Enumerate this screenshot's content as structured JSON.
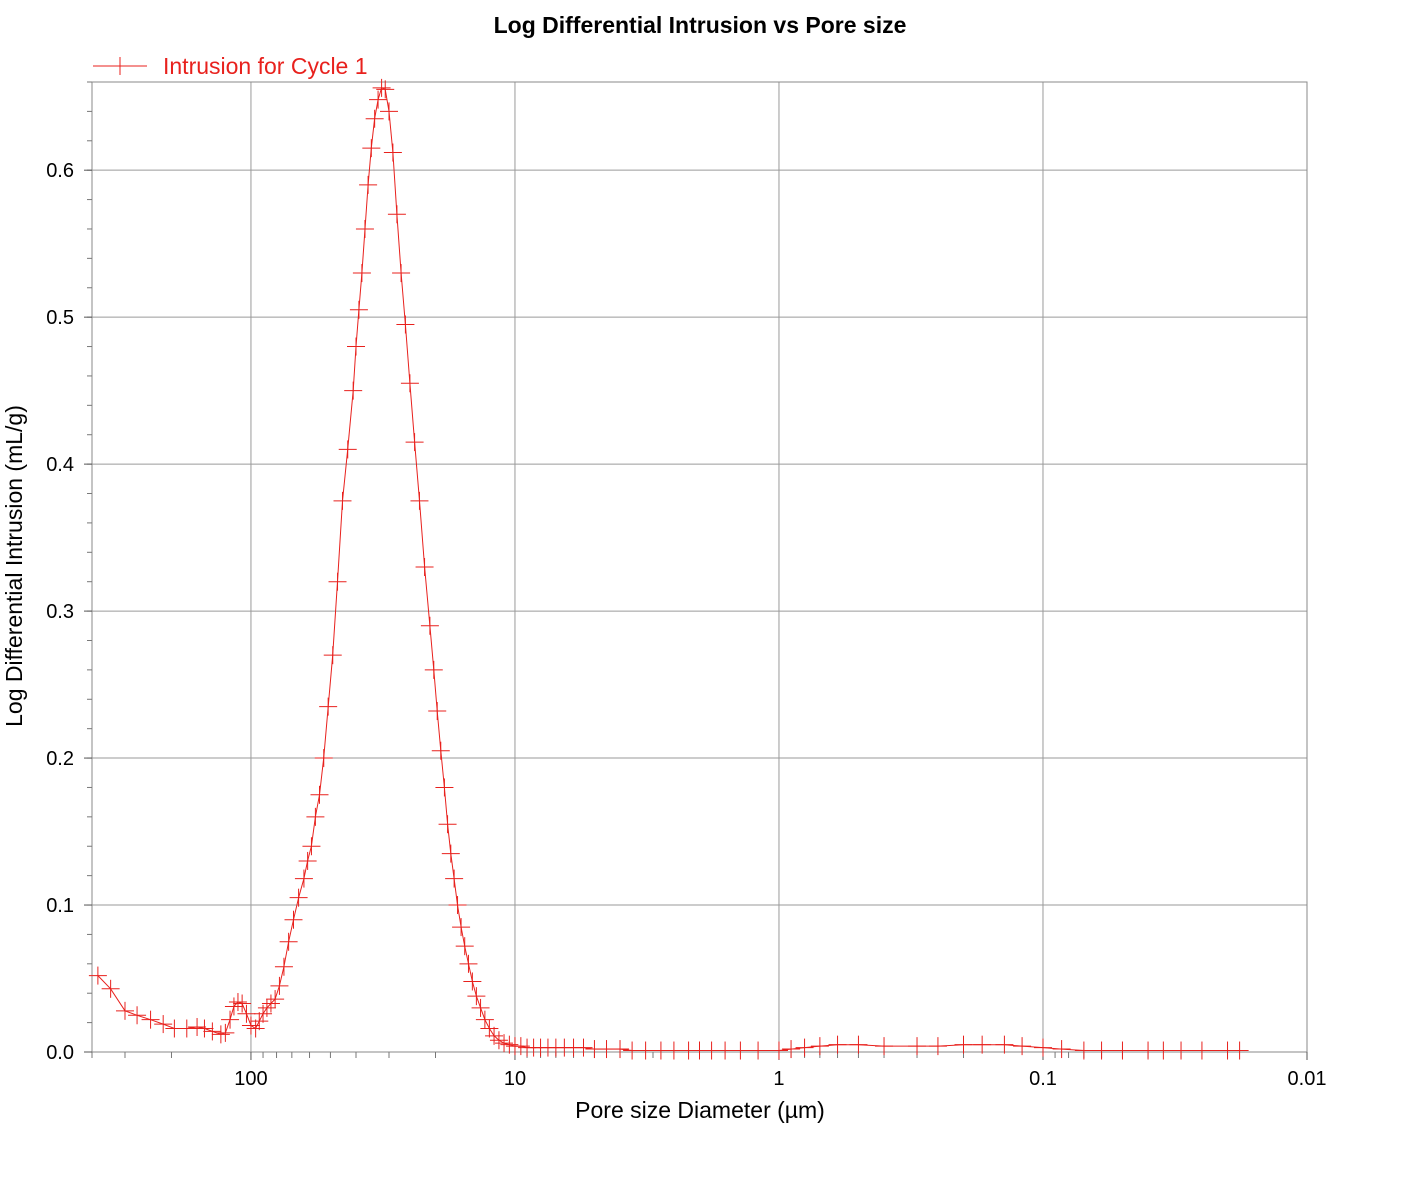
{
  "chart_data": {
    "type": "line",
    "title": "Log Differential Intrusion vs Pore size",
    "xlabel": "Pore size Diameter (µm)",
    "ylabel": "Log Differential Intrusion (mL/g)",
    "x_scale": "log",
    "x_reversed": true,
    "xlim": [
      400,
      0.01
    ],
    "ylim": [
      0,
      0.66
    ],
    "x_ticks": [
      100,
      10,
      1,
      0.1,
      0.01
    ],
    "x_tick_labels": [
      "100",
      "10",
      "1",
      "0.1",
      "0.01"
    ],
    "y_ticks": [
      0.0,
      0.1,
      0.2,
      0.3,
      0.4,
      0.5,
      0.6
    ],
    "y_tick_labels": [
      "0.0",
      "0.1",
      "0.2",
      "0.3",
      "0.4",
      "0.5",
      "0.6"
    ],
    "grid": true,
    "legend_position": "top-left",
    "marker": "plus",
    "color": "#e8211d",
    "series": [
      {
        "name": "Intrusion for Cycle 1",
        "x": [
          380,
          340,
          300,
          270,
          240,
          215,
          195,
          175,
          160,
          150,
          140,
          130,
          125,
          120,
          116,
          112,
          108,
          104,
          100,
          96,
          93,
          90,
          87,
          84,
          81,
          78,
          75,
          72,
          69,
          66,
          63,
          61,
          59,
          57,
          55,
          53,
          51,
          49,
          47,
          45,
          43,
          41,
          40,
          39,
          38,
          37,
          36,
          35,
          34,
          33,
          32,
          31,
          30,
          29,
          28,
          27,
          26,
          25,
          24,
          23,
          22,
          21,
          20.3,
          19.7,
          19.1,
          18.5,
          18,
          17.5,
          17,
          16.5,
          16,
          15.5,
          15,
          14.5,
          14,
          13.5,
          13,
          12.5,
          12,
          11.5,
          11,
          10.5,
          10,
          9.5,
          9,
          8.5,
          8,
          7.5,
          7,
          6.5,
          6,
          5.5,
          5,
          4.5,
          4,
          3.6,
          3.2,
          2.8,
          2.5,
          2.2,
          2.0,
          1.8,
          1.6,
          1.4,
          1.2,
          1.0,
          0.9,
          0.8,
          0.7,
          0.6,
          0.5,
          0.4,
          0.3,
          0.25,
          0.2,
          0.17,
          0.14,
          0.12,
          0.1,
          0.085,
          0.07,
          0.06,
          0.05,
          0.04,
          0.035,
          0.03,
          0.025,
          0.02,
          0.018
        ],
        "y": [
          0.052,
          0.043,
          0.028,
          0.025,
          0.022,
          0.019,
          0.016,
          0.016,
          0.017,
          0.016,
          0.014,
          0.012,
          0.013,
          0.022,
          0.031,
          0.034,
          0.033,
          0.026,
          0.018,
          0.016,
          0.021,
          0.026,
          0.03,
          0.033,
          0.036,
          0.045,
          0.058,
          0.075,
          0.09,
          0.105,
          0.118,
          0.13,
          0.14,
          0.16,
          0.175,
          0.2,
          0.235,
          0.27,
          0.32,
          0.375,
          0.41,
          0.45,
          0.48,
          0.505,
          0.53,
          0.56,
          0.59,
          0.615,
          0.635,
          0.648,
          0.656,
          0.655,
          0.64,
          0.612,
          0.57,
          0.53,
          0.495,
          0.455,
          0.415,
          0.375,
          0.33,
          0.29,
          0.26,
          0.232,
          0.205,
          0.18,
          0.155,
          0.135,
          0.118,
          0.1,
          0.085,
          0.072,
          0.06,
          0.048,
          0.038,
          0.03,
          0.022,
          0.016,
          0.011,
          0.008,
          0.006,
          0.005,
          0.004,
          0.004,
          0.003,
          0.003,
          0.003,
          0.003,
          0.003,
          0.003,
          0.003,
          0.003,
          0.002,
          0.002,
          0.002,
          0.001,
          0.001,
          0.001,
          0.001,
          0.001,
          0.001,
          0.001,
          0.001,
          0.001,
          0.001,
          0.001,
          0.002,
          0.003,
          0.004,
          0.005,
          0.005,
          0.004,
          0.004,
          0.004,
          0.005,
          0.005,
          0.005,
          0.004,
          0.003,
          0.002,
          0.001,
          0.001,
          0.001,
          0.001,
          0.001,
          0.001,
          0.001,
          0.001,
          0.001
        ]
      }
    ]
  }
}
